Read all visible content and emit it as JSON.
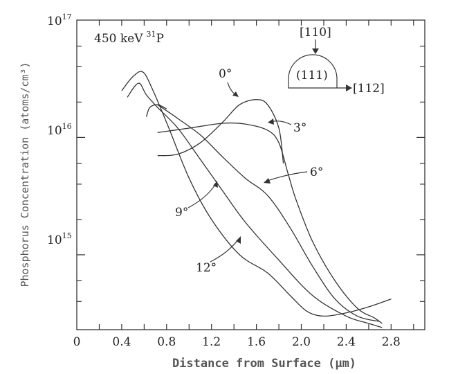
{
  "chart_data": {
    "type": "line",
    "title": "",
    "xlabel": "Distance from Surface (μm)",
    "ylabel": "Phosphorus Concentration (atoms/cm³)",
    "xlim": [
      0,
      3.1
    ],
    "ylim": [
      230000000000000.0,
      1e+17
    ],
    "y_scale": "log",
    "x_ticks": [
      0,
      0.4,
      0.8,
      1.2,
      1.6,
      2.0,
      2.4,
      2.8
    ],
    "x_tick_labels": [
      "0",
      "0.4",
      "0.8",
      "1.2",
      "1.6",
      "2.0",
      "2.4",
      "2.8"
    ],
    "y_tick_labels": [
      {
        "value": 1e+17,
        "base": "10",
        "exp": "17"
      },
      {
        "value": 1e+16,
        "base": "10",
        "exp": "16"
      },
      {
        "value": 1000000000000000.0,
        "base": "10",
        "exp": "15"
      }
    ],
    "grid": false,
    "annotation": {
      "energy": "450 keV",
      "mass_number": "31",
      "element": "P"
    },
    "inset": {
      "top_label": "[110]",
      "face_label": "(111)",
      "side_label": "[112]"
    },
    "series": [
      {
        "label": "0°",
        "x": [
          0.72,
          0.9,
          1.1,
          1.3,
          1.45,
          1.6,
          1.7,
          1.8,
          1.84
        ],
        "y": [
          7000000000000000.0,
          7200000000000000.0,
          9000000000000000.0,
          1.35e+16,
          1.9e+16,
          2.1e+16,
          1.9e+16,
          1.2e+16,
          6000000000000000.0
        ]
      },
      {
        "label": "3°",
        "x": [
          0.72,
          1.0,
          1.3,
          1.5,
          1.7,
          1.8,
          1.88,
          1.95,
          2.1,
          2.3,
          2.5,
          2.65,
          2.72
        ],
        "y": [
          1.1e+16,
          1.2e+16,
          1.32e+16,
          1.3e+16,
          1.15e+16,
          9000000000000000.0,
          5000000000000000.0,
          3000000000000000.0,
          1300000000000000.0,
          600000000000000.0,
          350000000000000.0,
          290000000000000.0,
          260000000000000.0
        ]
      },
      {
        "label": "6°",
        "x": [
          0.72,
          0.9,
          1.1,
          1.3,
          1.5,
          1.7,
          1.9,
          2.1,
          2.3,
          2.5,
          2.7
        ],
        "y": [
          1.9e+16,
          1.45e+16,
          1.05e+16,
          6800000000000000.0,
          4500000000000000.0,
          3200000000000000.0,
          1700000000000000.0,
          800000000000000.0,
          420000000000000.0,
          300000000000000.0,
          270000000000000.0
        ]
      },
      {
        "label": "9°",
        "x": [
          0.45,
          0.55,
          0.62,
          0.72,
          0.9,
          1.1,
          1.3,
          1.5,
          1.8,
          2.1,
          2.4,
          2.6,
          2.72
        ],
        "y": [
          2.2e+16,
          2.9e+16,
          2.3e+16,
          1.8e+16,
          1.2e+16,
          6500000000000000.0,
          3500000000000000.0,
          1900000000000000.0,
          900000000000000.0,
          450000000000000.0,
          300000000000000.0,
          260000000000000.0,
          240000000000000.0
        ]
      },
      {
        "label": "12°",
        "x": [
          0.4,
          0.5,
          0.59,
          0.68,
          0.82,
          1.0,
          1.2,
          1.45,
          1.7,
          1.9,
          2.05,
          2.2,
          2.4,
          2.6,
          2.8
        ],
        "y": [
          2.5e+16,
          3.3e+16,
          3.6e+16,
          2.5e+16,
          1.2e+16,
          4500000000000000.0,
          2000000000000000.0,
          1000000000000000.0,
          700000000000000.0,
          450000000000000.0,
          330000000000000.0,
          300000000000000.0,
          320000000000000.0,
          360000000000000.0,
          420000000000000.0
        ]
      }
    ],
    "extra_segment": {
      "x": [
        0.62,
        0.65,
        0.72,
        0.8
      ],
      "y": [
        1.5e+16,
        1.8e+16,
        1.9e+16,
        1.75e+16
      ]
    }
  }
}
